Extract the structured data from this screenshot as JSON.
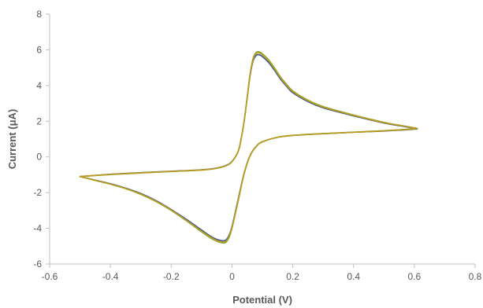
{
  "chart_data": {
    "type": "line",
    "title": "",
    "xlabel": "Potential (V)",
    "ylabel": "Current (μA)",
    "xlim": [
      -0.6,
      0.8
    ],
    "ylim": [
      -6,
      8
    ],
    "x_ticks": [
      -0.6,
      -0.4,
      -0.2,
      0,
      0.2,
      0.4,
      0.6,
      0.8
    ],
    "x_tick_labels": [
      "-0.6",
      "-0.4",
      "-0.2",
      "0",
      "0.2",
      "0.4",
      "0.6",
      "0.8"
    ],
    "y_ticks": [
      -6,
      -4,
      -2,
      0,
      2,
      4,
      6,
      8
    ],
    "y_tick_labels": [
      "-6",
      "-4",
      "-2",
      "0",
      "2",
      "4",
      "6",
      "8"
    ],
    "grid": false,
    "legend": "none",
    "series_colors": [
      "#2f5597",
      "#7aa82d",
      "#c09a1a"
    ],
    "series": [
      {
        "color": "#2f5597",
        "x": [
          -0.5,
          -0.45,
          -0.4,
          -0.35,
          -0.3,
          -0.25,
          -0.2,
          -0.15,
          -0.1,
          -0.07,
          -0.05,
          -0.03,
          -0.02,
          -0.01,
          0.0,
          0.02,
          0.04,
          0.06,
          0.08,
          0.1,
          0.15,
          0.2,
          0.3,
          0.4,
          0.5,
          0.6,
          0.6,
          0.55,
          0.5,
          0.4,
          0.3,
          0.25,
          0.2,
          0.18,
          0.16,
          0.14,
          0.12,
          0.1,
          0.09,
          0.08,
          0.07,
          0.06,
          0.05,
          0.04,
          0.03,
          0.02,
          0.0,
          -0.02,
          -0.05,
          -0.1,
          -0.2,
          -0.3,
          -0.4,
          -0.5
        ],
        "y": [
          -1.1,
          -1.3,
          -1.5,
          -1.75,
          -2.05,
          -2.45,
          -2.95,
          -3.5,
          -4.1,
          -4.45,
          -4.62,
          -4.7,
          -4.65,
          -4.4,
          -3.9,
          -2.4,
          -0.9,
          0.1,
          0.6,
          0.85,
          1.1,
          1.2,
          1.3,
          1.38,
          1.45,
          1.55,
          1.6,
          1.75,
          1.9,
          2.3,
          2.75,
          3.1,
          3.6,
          3.95,
          4.35,
          4.85,
          5.3,
          5.62,
          5.72,
          5.7,
          5.4,
          4.6,
          3.3,
          2.0,
          1.0,
          0.3,
          -0.25,
          -0.48,
          -0.62,
          -0.72,
          -0.8,
          -0.88,
          -0.97,
          -1.1
        ]
      },
      {
        "color": "#7aa82d",
        "x": [
          -0.5,
          -0.45,
          -0.4,
          -0.35,
          -0.3,
          -0.25,
          -0.2,
          -0.15,
          -0.1,
          -0.07,
          -0.05,
          -0.03,
          -0.02,
          -0.01,
          0.0,
          0.02,
          0.04,
          0.06,
          0.08,
          0.1,
          0.15,
          0.2,
          0.3,
          0.4,
          0.5,
          0.6,
          0.6,
          0.55,
          0.5,
          0.4,
          0.3,
          0.25,
          0.2,
          0.18,
          0.16,
          0.14,
          0.12,
          0.1,
          0.09,
          0.08,
          0.07,
          0.06,
          0.05,
          0.04,
          0.03,
          0.02,
          0.0,
          -0.02,
          -0.05,
          -0.1,
          -0.2,
          -0.3,
          -0.4,
          -0.5
        ],
        "y": [
          -1.1,
          -1.32,
          -1.53,
          -1.78,
          -2.1,
          -2.5,
          -3.0,
          -3.58,
          -4.2,
          -4.55,
          -4.72,
          -4.82,
          -4.78,
          -4.52,
          -4.0,
          -2.5,
          -0.95,
          0.08,
          0.58,
          0.84,
          1.1,
          1.21,
          1.31,
          1.39,
          1.47,
          1.58,
          1.63,
          1.78,
          1.94,
          2.35,
          2.82,
          3.18,
          3.7,
          4.06,
          4.47,
          4.98,
          5.45,
          5.78,
          5.88,
          5.86,
          5.55,
          4.7,
          3.35,
          2.02,
          1.0,
          0.28,
          -0.27,
          -0.5,
          -0.64,
          -0.74,
          -0.82,
          -0.9,
          -0.99,
          -1.1
        ]
      },
      {
        "color": "#c09a1a",
        "x": [
          -0.5,
          -0.45,
          -0.4,
          -0.35,
          -0.3,
          -0.25,
          -0.2,
          -0.15,
          -0.1,
          -0.07,
          -0.05,
          -0.03,
          -0.02,
          -0.01,
          0.0,
          0.02,
          0.04,
          0.06,
          0.08,
          0.1,
          0.15,
          0.2,
          0.3,
          0.4,
          0.5,
          0.6,
          0.6,
          0.55,
          0.5,
          0.4,
          0.3,
          0.25,
          0.2,
          0.18,
          0.16,
          0.14,
          0.12,
          0.1,
          0.09,
          0.08,
          0.07,
          0.06,
          0.05,
          0.04,
          0.03,
          0.02,
          0.0,
          -0.02,
          -0.05,
          -0.1,
          -0.2,
          -0.3,
          -0.4,
          -0.5
        ],
        "y": [
          -1.1,
          -1.31,
          -1.52,
          -1.77,
          -2.08,
          -2.48,
          -2.98,
          -3.55,
          -4.16,
          -4.5,
          -4.68,
          -4.77,
          -4.72,
          -4.47,
          -3.96,
          -2.46,
          -0.93,
          0.09,
          0.59,
          0.85,
          1.1,
          1.2,
          1.3,
          1.38,
          1.46,
          1.57,
          1.62,
          1.77,
          1.92,
          2.33,
          2.79,
          3.15,
          3.66,
          4.01,
          4.42,
          4.93,
          5.4,
          5.72,
          5.82,
          5.8,
          5.48,
          4.66,
          3.33,
          2.01,
          1.0,
          0.29,
          -0.26,
          -0.49,
          -0.63,
          -0.73,
          -0.81,
          -0.89,
          -0.98,
          -1.1
        ]
      }
    ]
  }
}
